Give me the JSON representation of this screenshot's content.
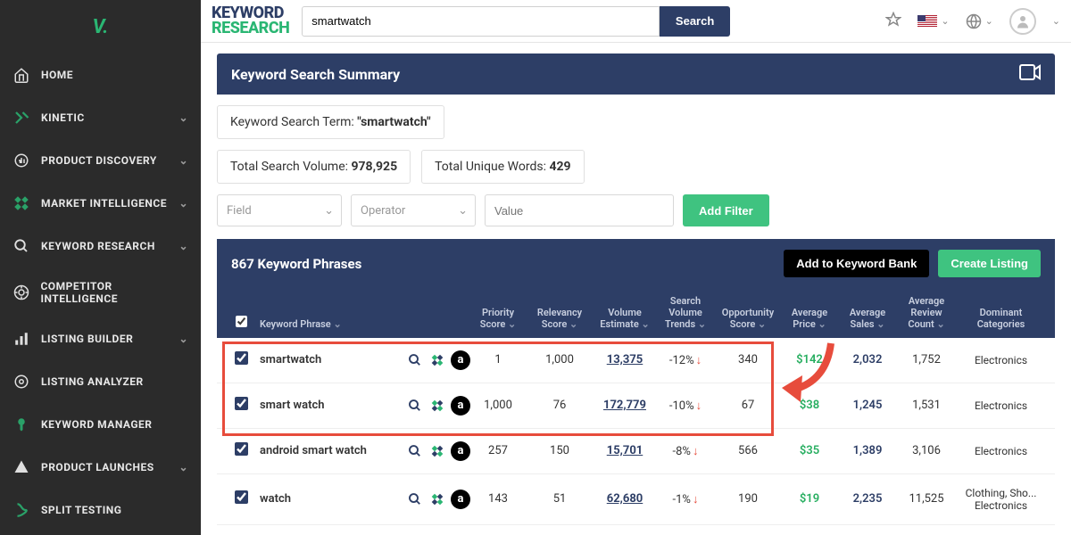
{
  "brand": {
    "line1": "KEYWORD",
    "line2": "RESEARCH"
  },
  "search": {
    "value": "smartwatch",
    "button": "Search"
  },
  "sidebar": {
    "items": [
      {
        "label": "HOME",
        "expandable": false
      },
      {
        "label": "KINETIC",
        "expandable": true
      },
      {
        "label": "PRODUCT DISCOVERY",
        "expandable": true
      },
      {
        "label": "MARKET INTELLIGENCE",
        "expandable": true
      },
      {
        "label": "KEYWORD RESEARCH",
        "expandable": true
      },
      {
        "label": "COMPETITOR INTELLIGENCE",
        "expandable": false
      },
      {
        "label": "LISTING BUILDER",
        "expandable": true
      },
      {
        "label": "LISTING ANALYZER",
        "expandable": false
      },
      {
        "label": "KEYWORD MANAGER",
        "expandable": false
      },
      {
        "label": "PRODUCT LAUNCHES",
        "expandable": true
      },
      {
        "label": "SPLIT TESTING",
        "expandable": false
      }
    ]
  },
  "summary": {
    "title": "Keyword Search Summary",
    "term_label": "Keyword Search Term: ",
    "term_value": "\"smartwatch\"",
    "volume_label": "Total Search Volume: ",
    "volume_value": "978,925",
    "unique_label": "Total Unique Words: ",
    "unique_value": "429"
  },
  "filters": {
    "field": "Field",
    "operator": "Operator",
    "value_placeholder": "Value",
    "add_button": "Add Filter"
  },
  "table": {
    "count_label": "867 Keyword Phrases",
    "add_bank": "Add to Keyword Bank",
    "create_listing": "Create Listing",
    "columns": {
      "phrase": "Keyword Phrase",
      "priority": "Priority Score",
      "relevancy": "Relevancy Score",
      "volume": "Volume Estimate",
      "trends": "Search Volume Trends",
      "opportunity": "Opportunity Score",
      "price": "Average Price",
      "sales": "Average Sales",
      "reviews": "Average Review Count",
      "categories": "Dominant Categories"
    },
    "rows": [
      {
        "phrase": "smartwatch",
        "priority": "1",
        "relevancy": "1,000",
        "volume": "13,375",
        "trend": "-12%",
        "opportunity": "340",
        "price": "$142",
        "sales": "2,032",
        "reviews": "1,752",
        "categories": "Electronics"
      },
      {
        "phrase": "smart watch",
        "priority": "1,000",
        "relevancy": "76",
        "volume": "172,779",
        "trend": "-10%",
        "opportunity": "67",
        "price": "$38",
        "sales": "1,245",
        "reviews": "1,531",
        "categories": "Electronics"
      },
      {
        "phrase": "android smart watch",
        "priority": "257",
        "relevancy": "150",
        "volume": "15,701",
        "trend": "-8%",
        "opportunity": "566",
        "price": "$35",
        "sales": "1,389",
        "reviews": "3,106",
        "categories": "Electronics"
      },
      {
        "phrase": "watch",
        "priority": "143",
        "relevancy": "51",
        "volume": "62,680",
        "trend": "-1%",
        "opportunity": "190",
        "price": "$19",
        "sales": "2,235",
        "reviews": "11,525",
        "categories": "Clothing, Sho... Electronics"
      }
    ]
  },
  "colors": {
    "primary": "#2d3e66",
    "accent": "#2ab673",
    "green_btn": "#3fc380",
    "price": "#27ae60",
    "down": "#e74c3c",
    "highlight": "#e74c3c"
  }
}
